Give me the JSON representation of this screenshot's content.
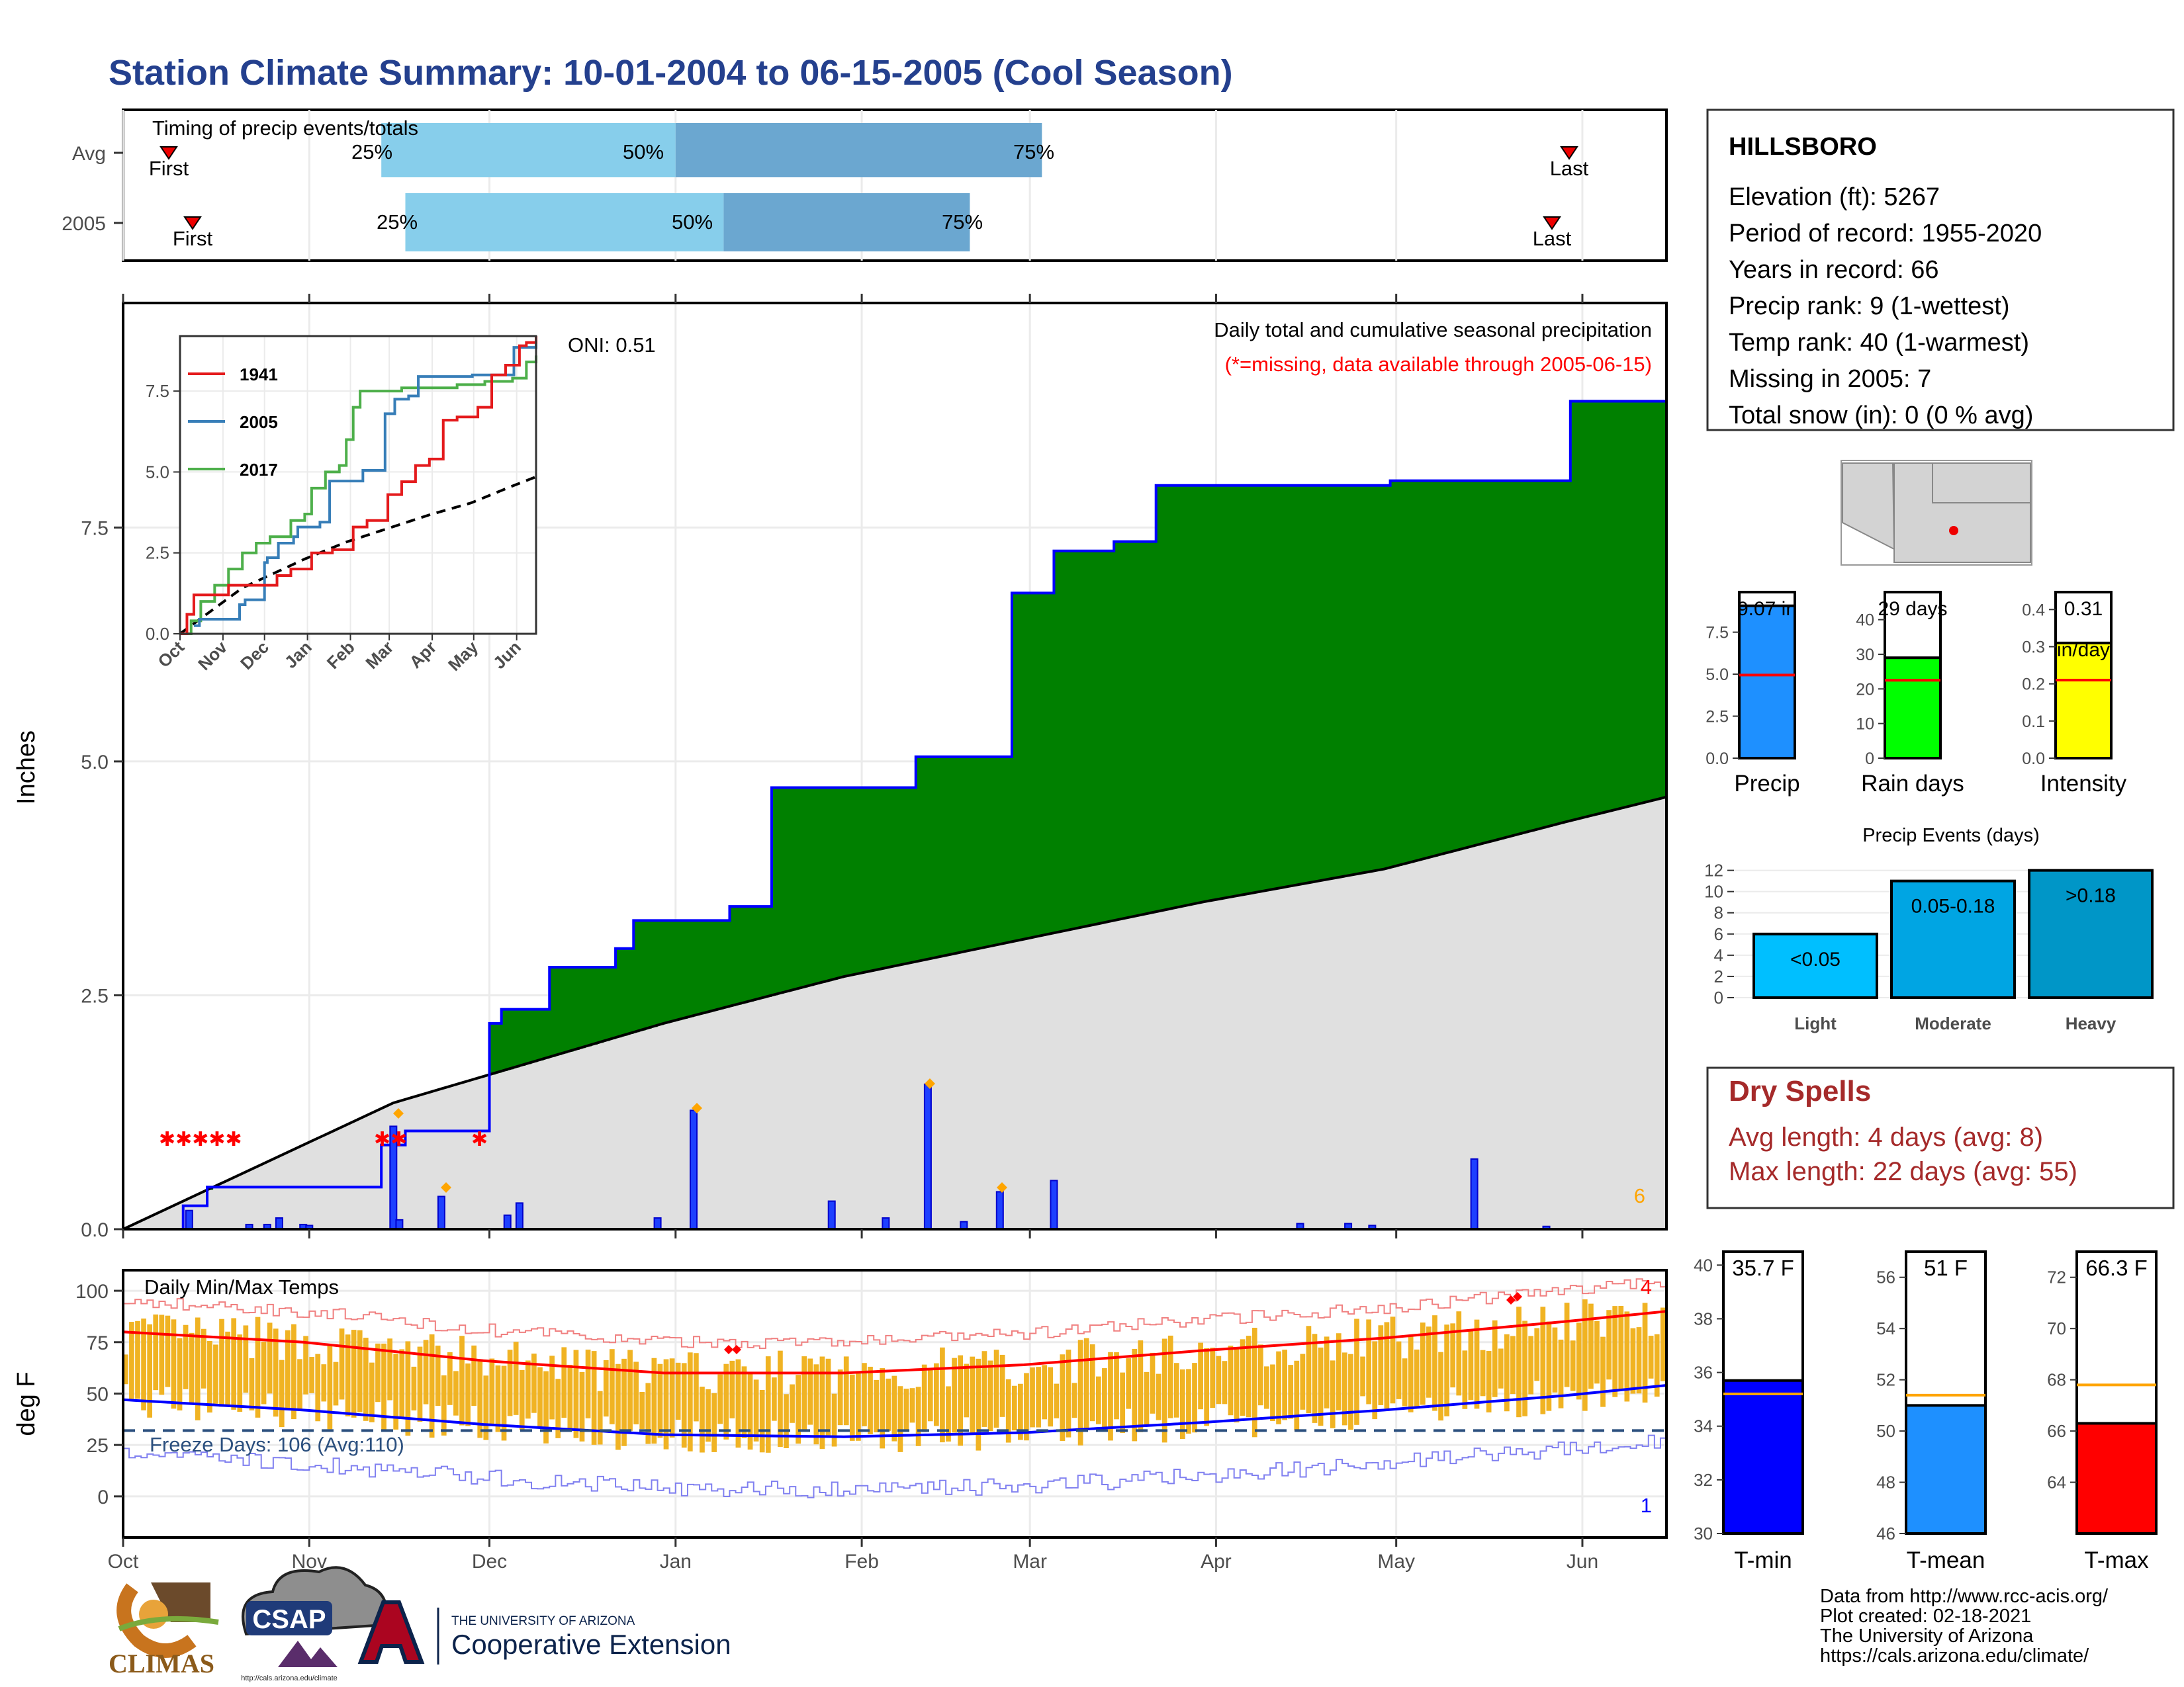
{
  "title": "Station Climate Summary: 10-01-2004 to 06-15-2005 (Cool Season)",
  "timing": {
    "title": "Timing of precip events/totals",
    "rows": [
      {
        "label": "Avg",
        "first": "Oct 6",
        "q25": "Nov 13",
        "q50": "Jan 1",
        "q75": "Mar 3",
        "last": "May 27"
      },
      {
        "label": "2005",
        "first": "Oct 10",
        "q25": "Nov 17",
        "q50": "Jan 9",
        "q75": "Feb 21",
        "last": "May 24"
      }
    ],
    "first_label": "First",
    "last_label": "Last",
    "p25": "25%",
    "p50": "50%",
    "p75": "75%"
  },
  "precip_panel": {
    "ylabel": "Inches",
    "oni": "ONI: 0.51",
    "legend1": "Daily total and cumulative seasonal precipitation",
    "legend2": "(*=missing, data available through 2005-06-15)",
    "corner_count": "6",
    "yticks": [
      "0.0",
      "2.5",
      "5.0",
      "7.5"
    ]
  },
  "inset": {
    "series": [
      {
        "name": "1941",
        "color": "#E41A1C"
      },
      {
        "name": "2005",
        "color": "#377EB8"
      },
      {
        "name": "2017",
        "color": "#4DAF4A"
      }
    ],
    "yticks": [
      "0.0",
      "2.5",
      "5.0",
      "7.5"
    ],
    "xticks": [
      "Oct",
      "Nov",
      "Dec",
      "Jan",
      "Feb",
      "Mar",
      "Apr",
      "May",
      "Jun"
    ]
  },
  "temp_panel": {
    "ylabel": "deg F",
    "title": "Daily Min/Max Temps",
    "freeze": "Freeze Days: 106 (Avg:110)",
    "count_hi": "4",
    "count_lo": "1",
    "yticks": [
      "0",
      "25",
      "50",
      "75",
      "100"
    ]
  },
  "months": [
    "Oct",
    "Nov",
    "Dec",
    "Jan",
    "Feb",
    "Mar",
    "Apr",
    "May",
    "Jun"
  ],
  "station": {
    "name": "HILLSBORO",
    "lines": [
      "Elevation (ft): 5267",
      "Period of record: 1955-2020",
      "Years in record: 66",
      "Precip rank: 9 (1-wettest)",
      "Temp rank: 40 (1-warmest)",
      "Missing in 2005: 7",
      "Total snow (in): 0 (0 % avg)"
    ]
  },
  "mini_bars": [
    {
      "label": "Precip",
      "value_text": "9.07 in",
      "sub": "",
      "color": "#1E90FF",
      "value": 9.07,
      "avg": 4.95,
      "max": 9.07,
      "ticks": [
        "0.0",
        "2.5",
        "5.0",
        "7.5"
      ]
    },
    {
      "label": "Rain days",
      "value_text": "29 days",
      "sub": "",
      "color": "#00FF00",
      "value": 29,
      "avg": 22.5,
      "max": 44,
      "ticks": [
        "0",
        "10",
        "20",
        "30",
        "40"
      ]
    },
    {
      "label": "Intensity",
      "value_text": "0.31",
      "sub": "in/day",
      "color": "#FFFF00",
      "value": 0.31,
      "avg": 0.21,
      "max": 0.41,
      "ticks": [
        "0.0",
        "0.1",
        "0.2",
        "0.3",
        "0.4"
      ]
    }
  ],
  "events": {
    "title": "Precip Events (days)",
    "bars": [
      {
        "label": "Light",
        "inside": "<0.05",
        "value": 6,
        "color": "#00BFFF"
      },
      {
        "label": "Moderate",
        "inside": "0.05-0.18",
        "value": 11,
        "color": "#00A5E3"
      },
      {
        "label": "Heavy",
        "inside": ">0.18",
        "value": 12,
        "color": "#0096C7"
      }
    ],
    "yticks": [
      "0",
      "2",
      "4",
      "6",
      "8",
      "10",
      "12"
    ]
  },
  "dry_spells": {
    "title": "Dry Spells",
    "avg": "Avg length: 4 days (avg: 8)",
    "max": "Max length: 22 days (avg: 55)",
    "color": "#A52A2A"
  },
  "temp_bars": [
    {
      "label": "T-min",
      "value_text": "35.7 F",
      "value": 35.7,
      "avg": 35.2,
      "color": "#0000FF",
      "ymin": 30,
      "ymax": 40.5,
      "ticks": [
        "30",
        "32",
        "34",
        "36",
        "38",
        "40"
      ]
    },
    {
      "label": "T-mean",
      "value_text": "51 F",
      "value": 51.0,
      "avg": 51.4,
      "color": "#1E90FF",
      "ymin": 46,
      "ymax": 57,
      "ticks": [
        "46",
        "48",
        "50",
        "52",
        "54",
        "56"
      ]
    },
    {
      "label": "T-max",
      "value_text": "66.3 F",
      "value": 66.3,
      "avg": 67.8,
      "color": "#FF0000",
      "ymin": 62,
      "ymax": 73,
      "ticks": [
        "64",
        "66",
        "68",
        "70",
        "72"
      ]
    }
  ],
  "footer": [
    "Data from http://www.rcc-acis.org/",
    "Plot created: 02-18-2021",
    "The University of Arizona",
    "https://cals.arizona.edu/climate/"
  ],
  "logos": {
    "climas": "CLIMAS",
    "csap": "CSAP",
    "csap_url": "http://cals.arizona.edu/climate",
    "ua_top": "THE UNIVERSITY OF ARIZONA",
    "ua_bottom": "Cooperative Extension"
  },
  "chart_data": {
    "type": "area",
    "title": "Daily total and cumulative seasonal precipitation",
    "xlabel": "",
    "ylabel": "Inches",
    "ylim": [
      0,
      9.5
    ],
    "x_months": [
      "Oct",
      "Nov",
      "Dec",
      "Jan",
      "Feb",
      "Mar",
      "Apr",
      "May",
      "Jun"
    ],
    "cumulative_2005": [
      [
        10,
        0.25
      ],
      [
        14,
        0.45
      ],
      [
        43,
        0.9
      ],
      [
        47,
        1.05
      ],
      [
        60,
        1.05
      ],
      [
        61,
        2.2
      ],
      [
        63,
        2.35
      ],
      [
        70,
        2.35
      ],
      [
        71,
        2.8
      ],
      [
        81,
        2.8
      ],
      [
        82,
        3.0
      ],
      [
        85,
        3.3
      ],
      [
        100,
        3.3
      ],
      [
        101,
        3.45
      ],
      [
        107,
        3.45
      ],
      [
        108,
        4.72
      ],
      [
        131,
        4.72
      ],
      [
        132,
        5.05
      ],
      [
        147,
        5.05
      ],
      [
        148,
        6.8
      ],
      [
        154,
        6.8
      ],
      [
        155,
        7.25
      ],
      [
        164,
        7.25
      ],
      [
        165,
        7.35
      ],
      [
        171,
        7.35
      ],
      [
        172,
        7.95
      ],
      [
        210,
        7.95
      ],
      [
        211,
        8.0
      ],
      [
        240,
        8.0
      ],
      [
        241,
        8.85
      ],
      [
        256,
        8.85
      ],
      [
        257,
        9.07
      ],
      [
        257,
        9.07
      ]
    ],
    "average_cumulative": [
      [
        0,
        0
      ],
      [
        45,
        1.35
      ],
      [
        90,
        2.2
      ],
      [
        120,
        2.7
      ],
      [
        150,
        3.1
      ],
      [
        180,
        3.5
      ],
      [
        210,
        3.85
      ],
      [
        240,
        4.35
      ],
      [
        257,
        4.62
      ]
    ],
    "daily_precip": [
      [
        11,
        0.2
      ],
      [
        21,
        0.05
      ],
      [
        24,
        0.05
      ],
      [
        26,
        0.12
      ],
      [
        30,
        0.05
      ],
      [
        31,
        0.04
      ],
      [
        45,
        1.1
      ],
      [
        46,
        0.1
      ],
      [
        53,
        0.35
      ],
      [
        64,
        0.15
      ],
      [
        66,
        0.28
      ],
      [
        89,
        0.12
      ],
      [
        95,
        1.27
      ],
      [
        118,
        0.3
      ],
      [
        127,
        0.12
      ],
      [
        134,
        1.55
      ],
      [
        140,
        0.08
      ],
      [
        146,
        0.4
      ],
      [
        155,
        0.52
      ],
      [
        196,
        0.06
      ],
      [
        204,
        0.06
      ],
      [
        208,
        0.04
      ],
      [
        225,
        0.75
      ],
      [
        237,
        0.03
      ]
    ],
    "temp_max_mean_curve": [
      [
        0,
        80
      ],
      [
        30,
        75
      ],
      [
        60,
        66
      ],
      [
        90,
        60
      ],
      [
        120,
        60
      ],
      [
        150,
        64
      ],
      [
        180,
        71
      ],
      [
        210,
        77
      ],
      [
        240,
        85
      ],
      [
        257,
        90
      ]
    ],
    "temp_min_mean_curve": [
      [
        0,
        47
      ],
      [
        30,
        42
      ],
      [
        60,
        35
      ],
      [
        90,
        30
      ],
      [
        120,
        29
      ],
      [
        150,
        31
      ],
      [
        180,
        36
      ],
      [
        210,
        42
      ],
      [
        240,
        49
      ],
      [
        257,
        54
      ]
    ],
    "freeze_line": 32
  }
}
